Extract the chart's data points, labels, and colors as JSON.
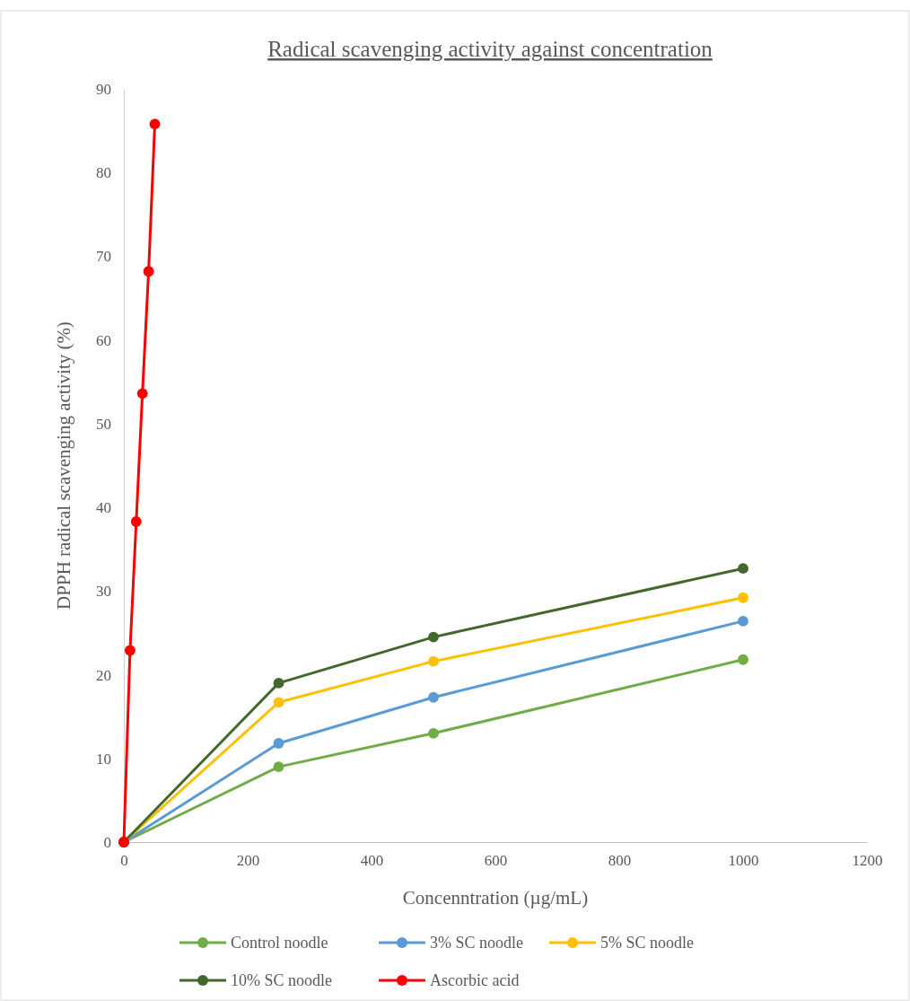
{
  "chart_data": {
    "type": "line",
    "title": "Radical scavenging activity against concentration",
    "xlabel": "Concenntration (µg/mL)",
    "ylabel": "DPPH radical scavenging activity (%)",
    "xlim": [
      0,
      1200
    ],
    "xticks": [
      0,
      200,
      400,
      600,
      800,
      1000,
      1200
    ],
    "ylim": [
      0,
      90
    ],
    "yticks": [
      0,
      10,
      20,
      30,
      40,
      50,
      60,
      70,
      80,
      90
    ],
    "grid": false,
    "legend": "bottom",
    "marker": "circle",
    "line_style": "solid",
    "series": [
      {
        "name": "Control noodle",
        "color": "#70ad47",
        "x": [
          0,
          250,
          500,
          1000
        ],
        "values": [
          0,
          9.0,
          13.0,
          21.8
        ]
      },
      {
        "name": "3% SC noodle",
        "color": "#5b9bd5",
        "x": [
          0,
          250,
          500,
          1000
        ],
        "values": [
          0,
          11.8,
          17.3,
          26.4
        ]
      },
      {
        "name": "5% SC noodle",
        "color": "#ffc000",
        "x": [
          0,
          250,
          500,
          1000
        ],
        "values": [
          0,
          16.7,
          21.6,
          29.2
        ]
      },
      {
        "name": "10% SC noodle",
        "color": "#43682b",
        "x": [
          0,
          250,
          500,
          1000
        ],
        "values": [
          0,
          19.0,
          24.5,
          32.7
        ]
      },
      {
        "name": "Ascorbic acid",
        "color": "#ff0000",
        "x": [
          0,
          10,
          20,
          30,
          40,
          50
        ],
        "values": [
          0,
          22.9,
          38.3,
          53.6,
          68.2,
          85.8
        ]
      }
    ]
  }
}
